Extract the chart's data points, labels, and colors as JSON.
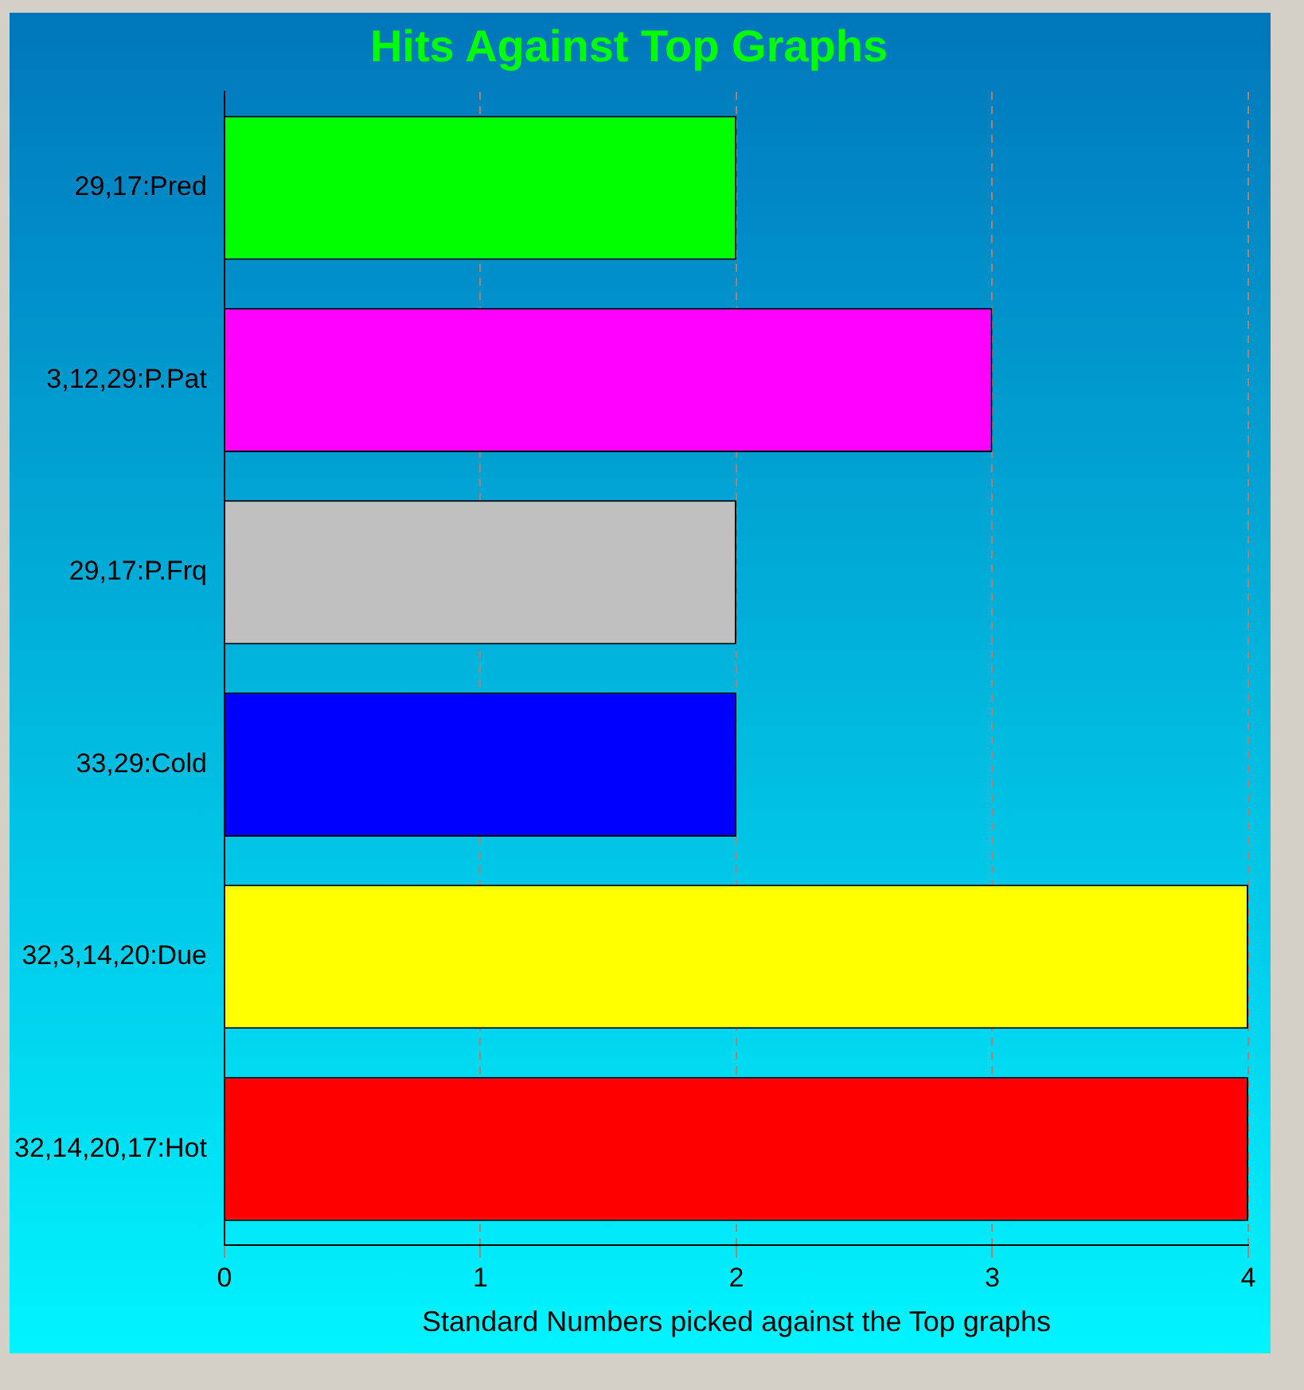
{
  "chart_data": {
    "type": "bar",
    "orientation": "horizontal",
    "title": "Hits Against Top Graphs",
    "xlabel": "Standard Numbers picked against the Top graphs",
    "categories": [
      "29,17:Pred",
      "3,12,29:P.Pat",
      "29,17:P.Frq",
      "33,29:Cold",
      "32,3,14,20:Due",
      "32,14,20,17:Hot"
    ],
    "values": [
      2,
      3,
      2,
      2,
      4,
      4
    ],
    "colors": [
      "#00ff00",
      "#ff00ff",
      "#c0c0c0",
      "#0000ff",
      "#ffff00",
      "#ff0000"
    ],
    "xlim": [
      0,
      4
    ],
    "xticks": [
      0,
      1,
      2,
      3,
      4
    ],
    "grid": "x",
    "line_style": "dashed"
  }
}
